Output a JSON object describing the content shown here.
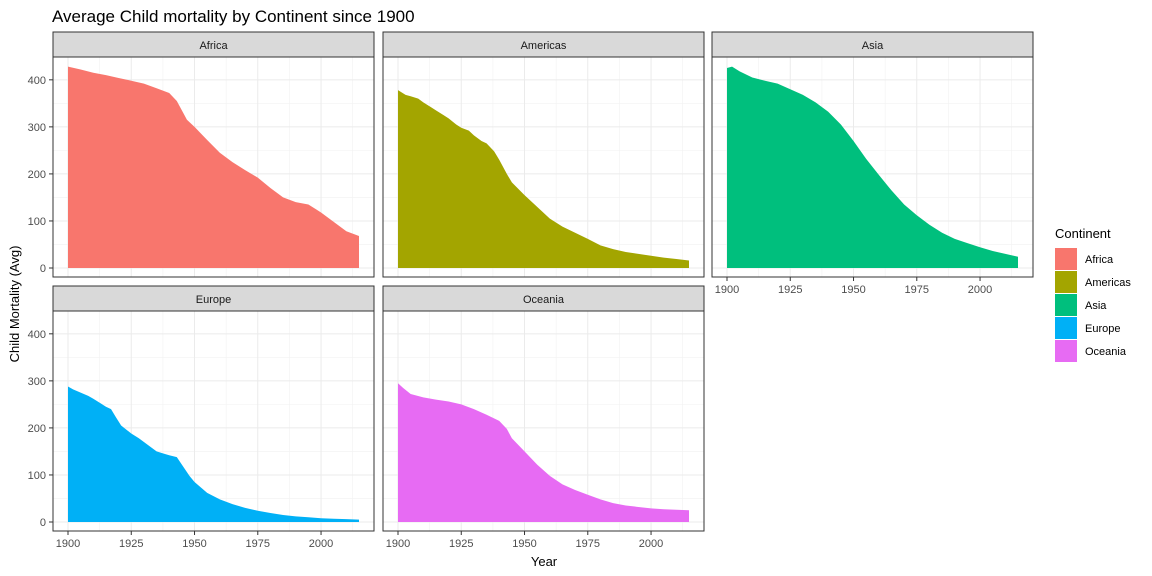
{
  "chart_data": {
    "type": "area",
    "title": "Average Child mortality by Continent since 1900",
    "xlabel": "Year",
    "ylabel": "Child Mortality (Avg)",
    "xlim": [
      1900,
      2015
    ],
    "ylim": [
      0,
      450
    ],
    "x_ticks": [
      1900,
      1925,
      1950,
      1975,
      2000
    ],
    "y_ticks": [
      0,
      100,
      200,
      300,
      400
    ],
    "grid": true,
    "facet_layout": "wrap 3 columns, 2 rows",
    "legend": {
      "title": "Continent",
      "placement": "right",
      "entries": [
        "Africa",
        "Americas",
        "Asia",
        "Europe",
        "Oceania"
      ]
    },
    "series": [
      {
        "name": "Africa",
        "color": "#F8766D",
        "points": [
          [
            1900,
            428
          ],
          [
            1905,
            422
          ],
          [
            1910,
            415
          ],
          [
            1915,
            410
          ],
          [
            1920,
            404
          ],
          [
            1925,
            398
          ],
          [
            1930,
            392
          ],
          [
            1935,
            382
          ],
          [
            1940,
            372
          ],
          [
            1943,
            355
          ],
          [
            1945,
            335
          ],
          [
            1947,
            315
          ],
          [
            1950,
            300
          ],
          [
            1955,
            272
          ],
          [
            1960,
            245
          ],
          [
            1965,
            225
          ],
          [
            1970,
            208
          ],
          [
            1975,
            192
          ],
          [
            1980,
            170
          ],
          [
            1983,
            158
          ],
          [
            1985,
            150
          ],
          [
            1990,
            140
          ],
          [
            1995,
            135
          ],
          [
            1998,
            125
          ],
          [
            2000,
            118
          ],
          [
            2005,
            98
          ],
          [
            2010,
            78
          ],
          [
            2015,
            68
          ]
        ]
      },
      {
        "name": "Americas",
        "color": "#A3A500",
        "points": [
          [
            1900,
            378
          ],
          [
            1903,
            368
          ],
          [
            1905,
            365
          ],
          [
            1908,
            360
          ],
          [
            1910,
            352
          ],
          [
            1913,
            342
          ],
          [
            1915,
            335
          ],
          [
            1918,
            325
          ],
          [
            1920,
            318
          ],
          [
            1923,
            305
          ],
          [
            1925,
            298
          ],
          [
            1928,
            292
          ],
          [
            1930,
            282
          ],
          [
            1933,
            270
          ],
          [
            1935,
            265
          ],
          [
            1938,
            248
          ],
          [
            1940,
            230
          ],
          [
            1943,
            200
          ],
          [
            1945,
            182
          ],
          [
            1950,
            155
          ],
          [
            1955,
            130
          ],
          [
            1960,
            105
          ],
          [
            1965,
            88
          ],
          [
            1970,
            75
          ],
          [
            1975,
            62
          ],
          [
            1980,
            48
          ],
          [
            1985,
            40
          ],
          [
            1990,
            34
          ],
          [
            1995,
            30
          ],
          [
            2000,
            26
          ],
          [
            2005,
            22
          ],
          [
            2010,
            19
          ],
          [
            2015,
            16
          ]
        ]
      },
      {
        "name": "Asia",
        "color": "#00BF7D",
        "points": [
          [
            1900,
            425
          ],
          [
            1902,
            428
          ],
          [
            1905,
            418
          ],
          [
            1910,
            405
          ],
          [
            1915,
            398
          ],
          [
            1920,
            392
          ],
          [
            1925,
            380
          ],
          [
            1930,
            368
          ],
          [
            1935,
            352
          ],
          [
            1940,
            332
          ],
          [
            1945,
            305
          ],
          [
            1950,
            270
          ],
          [
            1955,
            232
          ],
          [
            1960,
            198
          ],
          [
            1965,
            165
          ],
          [
            1970,
            135
          ],
          [
            1975,
            112
          ],
          [
            1980,
            92
          ],
          [
            1985,
            75
          ],
          [
            1990,
            62
          ],
          [
            1995,
            53
          ],
          [
            2000,
            44
          ],
          [
            2005,
            36
          ],
          [
            2010,
            30
          ],
          [
            2015,
            24
          ]
        ]
      },
      {
        "name": "Europe",
        "color": "#00B0F6",
        "points": [
          [
            1900,
            288
          ],
          [
            1902,
            282
          ],
          [
            1905,
            275
          ],
          [
            1908,
            268
          ],
          [
            1910,
            262
          ],
          [
            1913,
            252
          ],
          [
            1915,
            245
          ],
          [
            1917,
            240
          ],
          [
            1919,
            222
          ],
          [
            1921,
            205
          ],
          [
            1925,
            188
          ],
          [
            1928,
            178
          ],
          [
            1930,
            170
          ],
          [
            1933,
            158
          ],
          [
            1935,
            150
          ],
          [
            1938,
            145
          ],
          [
            1940,
            142
          ],
          [
            1943,
            138
          ],
          [
            1945,
            122
          ],
          [
            1948,
            98
          ],
          [
            1950,
            85
          ],
          [
            1955,
            62
          ],
          [
            1960,
            48
          ],
          [
            1965,
            38
          ],
          [
            1970,
            30
          ],
          [
            1975,
            24
          ],
          [
            1980,
            19
          ],
          [
            1985,
            15
          ],
          [
            1990,
            12
          ],
          [
            1995,
            10
          ],
          [
            2000,
            8
          ],
          [
            2005,
            7
          ],
          [
            2010,
            6
          ],
          [
            2015,
            5
          ]
        ]
      },
      {
        "name": "Oceania",
        "color": "#E76BF3",
        "points": [
          [
            1900,
            295
          ],
          [
            1902,
            285
          ],
          [
            1905,
            272
          ],
          [
            1910,
            265
          ],
          [
            1915,
            260
          ],
          [
            1920,
            256
          ],
          [
            1925,
            250
          ],
          [
            1930,
            240
          ],
          [
            1935,
            228
          ],
          [
            1940,
            215
          ],
          [
            1943,
            198
          ],
          [
            1945,
            178
          ],
          [
            1950,
            150
          ],
          [
            1955,
            122
          ],
          [
            1960,
            98
          ],
          [
            1965,
            80
          ],
          [
            1970,
            68
          ],
          [
            1975,
            58
          ],
          [
            1980,
            48
          ],
          [
            1985,
            40
          ],
          [
            1990,
            35
          ],
          [
            1995,
            32
          ],
          [
            2000,
            29
          ],
          [
            2005,
            27
          ],
          [
            2010,
            26
          ],
          [
            2015,
            25
          ]
        ]
      }
    ]
  }
}
